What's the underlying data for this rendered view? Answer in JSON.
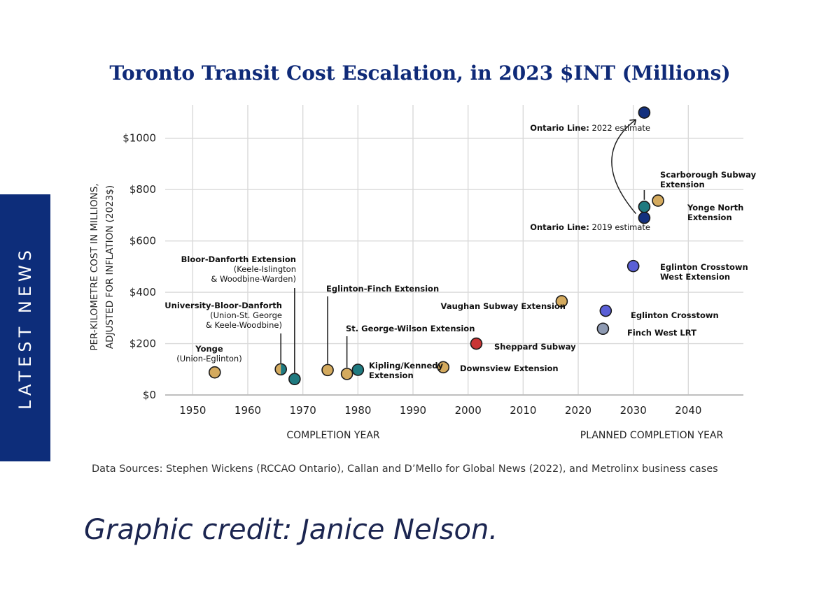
{
  "side_tab": {
    "label": "LATEST NEWS"
  },
  "credit": "Graphic credit: Janice Nelson.",
  "source_note": "Data Sources: Stephen Wickens (RCCAO Ontario), Callan and D’Mello for Global News (2022), and Metrolinx business cases",
  "colors": {
    "navy": "#0f2a78",
    "gold": "#d4aa5e",
    "teal": "#1f7a80",
    "indigo": "#5a5fd6",
    "grey": "#8e9ab2",
    "red": "#c83434",
    "darknavy": "#13307e",
    "sidebar": "#0d2d7a"
  },
  "chart_data": {
    "type": "scatter",
    "title": "Toronto Transit Cost Escalation, in 2023 $INT (Millions)",
    "ylabel_lines": [
      "PER-KILOMETRE COST IN MILLIONS,",
      "ADJUSTED FOR INFLATION (2023$)"
    ],
    "xlabel_left": "COMPLETION YEAR",
    "xlabel_right": "PLANNED COMPLETION YEAR",
    "xlim": [
      1945,
      2050
    ],
    "ylim": [
      0,
      1130
    ],
    "xticks": [
      1950,
      1960,
      1970,
      1980,
      1990,
      2000,
      2010,
      2020,
      2030,
      2040
    ],
    "yticks": [
      0,
      200,
      400,
      600,
      800,
      1000
    ],
    "ytick_labels": [
      "$0",
      "$200",
      "$400",
      "$600",
      "$800",
      "$1000"
    ],
    "points": [
      {
        "name": "yonge",
        "x": 1954,
        "y": 88,
        "color": "gold",
        "label_lines": [
          {
            "t": "Yonge",
            "b": true
          },
          {
            "t": "(Union-Eglinton)",
            "b": false
          }
        ]
      },
      {
        "name": "university-bloor-danforth",
        "x": 1966,
        "y": 100,
        "color": "split",
        "label_lines": [
          {
            "t": "University-Bloor-Danforth",
            "b": true
          },
          {
            "t": "(Union-St. George",
            "b": false
          },
          {
            "t": "& Keele-Woodbine)",
            "b": false
          }
        ]
      },
      {
        "name": "bloor-danforth-extension",
        "x": 1968.5,
        "y": 62,
        "color": "teal",
        "label_lines": [
          {
            "t": "Bloor-Danforth Extension",
            "b": true
          },
          {
            "t": "(Keele-Islington",
            "b": false
          },
          {
            "t": "& Woodbine-Warden)",
            "b": false
          }
        ]
      },
      {
        "name": "eglinton-finch-extension",
        "x": 1974.5,
        "y": 97,
        "color": "gold",
        "label_lines": [
          {
            "t": "Eglinton-Finch Extension",
            "b": true
          }
        ]
      },
      {
        "name": "st-george-wilson-extension",
        "x": 1978,
        "y": 82,
        "color": "gold",
        "label_lines": [
          {
            "t": "St. George-Wilson Extension",
            "b": true
          }
        ]
      },
      {
        "name": "kipling-kennedy-extension",
        "x": 1980,
        "y": 98,
        "color": "teal",
        "label_lines": [
          {
            "t": "Kipling/Kennedy",
            "b": true
          },
          {
            "t": "Extension",
            "b": true
          }
        ]
      },
      {
        "name": "downsview-extension",
        "x": 1995.5,
        "y": 108,
        "color": "gold",
        "label_lines": [
          {
            "t": "Downsview Extension",
            "b": true
          }
        ]
      },
      {
        "name": "sheppard-subway",
        "x": 2001.5,
        "y": 200,
        "color": "red",
        "label_lines": [
          {
            "t": "Sheppard Subway",
            "b": true
          }
        ]
      },
      {
        "name": "vaughan-subway-extension",
        "x": 2017,
        "y": 365,
        "color": "gold",
        "label_lines": [
          {
            "t": "Vaughan Subway Extension",
            "b": true
          }
        ]
      },
      {
        "name": "finch-west-lrt",
        "x": 2024.5,
        "y": 258,
        "color": "grey",
        "label_lines": [
          {
            "t": "Finch West LRT",
            "b": true
          }
        ]
      },
      {
        "name": "eglinton-crosstown",
        "x": 2025,
        "y": 328,
        "color": "indigo",
        "label_lines": [
          {
            "t": "Eglinton Crosstown",
            "b": true
          }
        ]
      },
      {
        "name": "eglinton-crosstown-west-extension",
        "x": 2030,
        "y": 502,
        "color": "indigo",
        "label_lines": [
          {
            "t": "Eglinton Crosstown",
            "b": true
          },
          {
            "t": "West Extension",
            "b": true
          }
        ]
      },
      {
        "name": "ontario-line-2019",
        "x": 2032,
        "y": 690,
        "color": "darknavy",
        "label_lines": [
          {
            "t": "Ontario Line:",
            "b": true
          },
          {
            "t": " 2019 estimate",
            "b": false
          }
        ]
      },
      {
        "name": "scarborough-subway-extension",
        "x": 2032,
        "y": 733,
        "color": "teal",
        "label_lines": [
          {
            "t": "Scarborough Subway",
            "b": true
          },
          {
            "t": "Extension",
            "b": true
          }
        ]
      },
      {
        "name": "yonge-north-extension",
        "x": 2034.5,
        "y": 757,
        "color": "gold",
        "label_lines": [
          {
            "t": "Yonge North",
            "b": true
          },
          {
            "t": "Extension",
            "b": true
          }
        ]
      },
      {
        "name": "ontario-line-2022",
        "x": 2032,
        "y": 1100,
        "color": "darknavy",
        "label_lines": [
          {
            "t": "Ontario Line:",
            "b": true
          },
          {
            "t": " 2022 estimate",
            "b": false
          }
        ]
      }
    ]
  }
}
